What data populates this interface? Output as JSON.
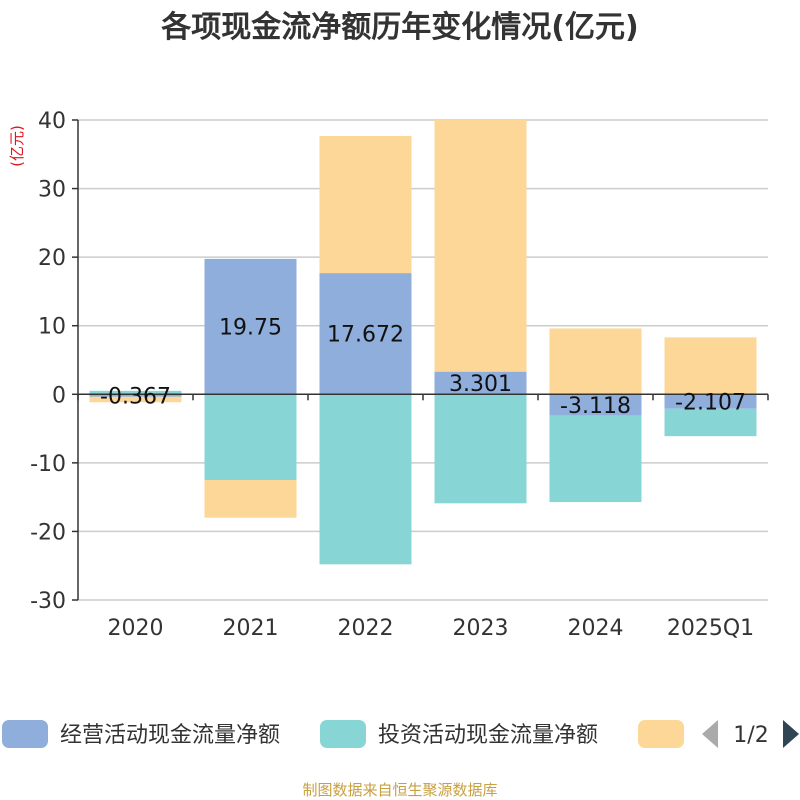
{
  "chart_data": {
    "type": "bar",
    "stacked": true,
    "title": "各项现金流净额历年变化情况(亿元)",
    "ylabel": "(亿元)",
    "ylim": [
      -30,
      40
    ],
    "yticks": [
      40,
      30,
      20,
      10,
      0,
      -10,
      -20,
      -30
    ],
    "ytick_labels": [
      "40",
      "30",
      "20",
      "10",
      "0",
      "-10",
      "-20",
      "-30"
    ],
    "categories": [
      "2020",
      "2021",
      "2022",
      "2023",
      "2024",
      "2025Q1"
    ],
    "series": [
      {
        "name": "经营活动现金流量净额",
        "color": "#8faedb",
        "values": [
          -0.367,
          19.75,
          17.672,
          3.301,
          -3.118,
          -2.107
        ],
        "labels": [
          "-0.367",
          "19.75",
          "17.672",
          "3.301",
          "-3.118",
          "-2.107"
        ]
      },
      {
        "name": "投资活动现金流量净额",
        "color": "#88d5d6",
        "values": [
          0.5,
          -12.5,
          -24.8,
          -15.9,
          -12.6,
          -4.0
        ]
      },
      {
        "name": "",
        "color": "#fdd797",
        "values": [
          -0.8,
          -5.5,
          20.0,
          36.7,
          9.6,
          8.3
        ]
      }
    ],
    "legend_position": "bottom"
  },
  "legend": {
    "page": "1/2"
  },
  "source": "制图数据来自恒生聚源数据库"
}
